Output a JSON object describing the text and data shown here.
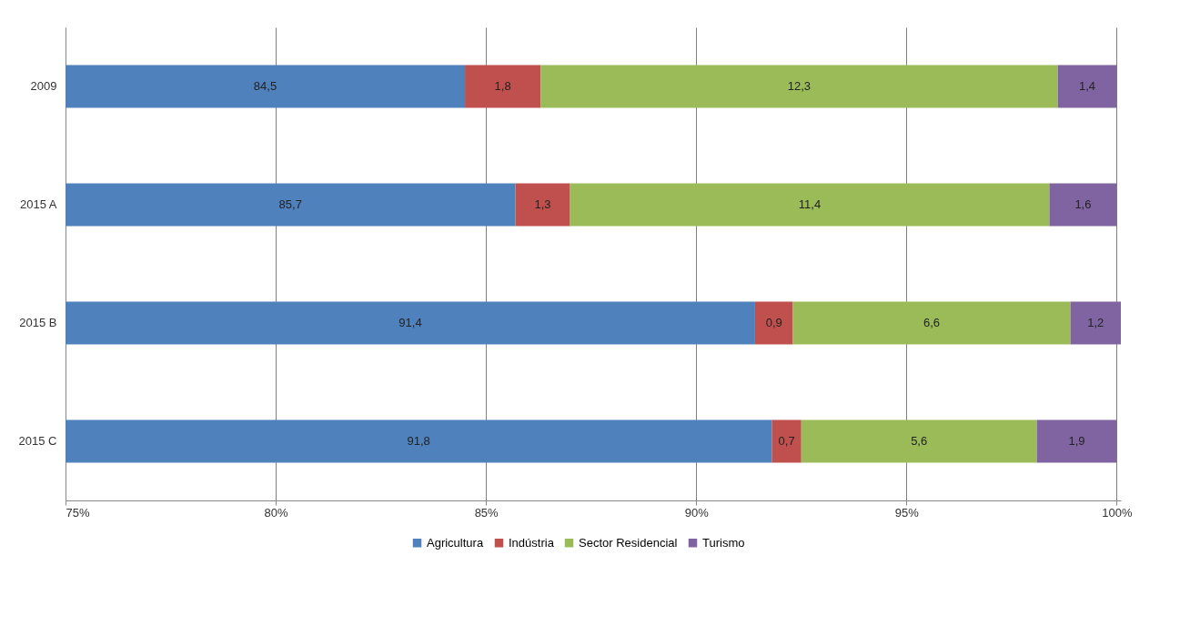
{
  "chart_data": {
    "type": "bar",
    "orientation": "horizontal",
    "categories": [
      "2009",
      "2015 A",
      "2015 B",
      "2015 C"
    ],
    "series": [
      {
        "name": "Agricultura",
        "color": "#4f81bd",
        "values": [
          84.5,
          85.7,
          91.4,
          91.8
        ],
        "base": [
          0,
          0,
          0,
          0
        ],
        "value_labels": [
          "84,5",
          "85,7",
          "91,4",
          "91,8"
        ]
      },
      {
        "name": "Indústria",
        "color": "#c0504d",
        "values": [
          1.8,
          1.3,
          0.9,
          0.7
        ],
        "base": [
          84.5,
          85.7,
          91.4,
          91.8
        ],
        "value_labels": [
          "1,8",
          "1,3",
          "0,9",
          "0,7"
        ]
      },
      {
        "name": "Sector Residencial",
        "color": "#9bbb59",
        "values": [
          12.3,
          11.4,
          6.6,
          5.6
        ],
        "base": [
          86.3,
          87.0,
          92.3,
          92.5
        ],
        "value_labels": [
          "12,3",
          "11,4",
          "6,6",
          "5,6"
        ]
      },
      {
        "name": "Turismo",
        "color": "#8064a2",
        "values": [
          1.4,
          1.6,
          1.2,
          1.9
        ],
        "base": [
          98.6,
          98.4,
          98.9,
          98.1
        ],
        "value_labels": [
          "1,4",
          "1,6",
          "1,2",
          "1,9"
        ]
      }
    ],
    "xlim": [
      75,
      100.1
    ],
    "xticks": [
      {
        "value": 75,
        "label": "75%"
      },
      {
        "value": 80,
        "label": "80%"
      },
      {
        "value": 85,
        "label": "85%"
      },
      {
        "value": 90,
        "label": "90%"
      },
      {
        "value": 95,
        "label": "95%"
      },
      {
        "value": 100,
        "label": "100%"
      }
    ],
    "grid": "x",
    "legend": "bottom"
  }
}
